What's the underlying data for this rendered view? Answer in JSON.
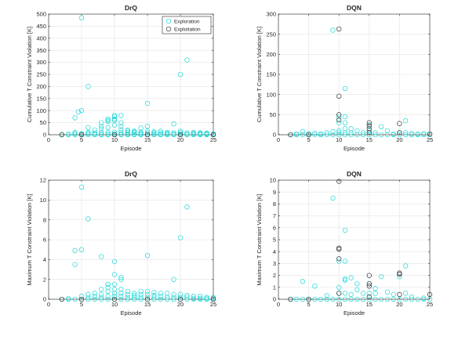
{
  "legend": {
    "entries": [
      {
        "label": "Exploration",
        "color": "#1fd6d6"
      },
      {
        "label": "Exploitation",
        "color": "#333333"
      }
    ]
  },
  "colors": {
    "exploration": "#1fd6d6",
    "exploitation": "#333333",
    "grid": "#e3e3e3",
    "axis": "#262626"
  },
  "chart_data": [
    {
      "type": "scatter",
      "title": "DrQ",
      "xlabel": "Episode",
      "ylabel": "Cumulative T Constraint Violation [K]",
      "xlim": [
        0,
        25
      ],
      "ylim": [
        0,
        500
      ],
      "xticks": [
        0,
        5,
        10,
        15,
        20,
        25
      ],
      "yticks": [
        0,
        50,
        100,
        150,
        200,
        250,
        300,
        350,
        400,
        450,
        500
      ],
      "grid": true,
      "legend": "top-right",
      "series": [
        {
          "name": "Exploration",
          "marker": "circle",
          "color": "#1fd6d6",
          "x": [
            2,
            2,
            3,
            3,
            4,
            4,
            4,
            4,
            4.5,
            5,
            5,
            5,
            5,
            5,
            6,
            6,
            6,
            6,
            6,
            7,
            7,
            7,
            7,
            8,
            8,
            8,
            8,
            8,
            8,
            9,
            9,
            9,
            9,
            9,
            9,
            9,
            10,
            10,
            10,
            10,
            10,
            10,
            10,
            10,
            11,
            11,
            11,
            11,
            11,
            11,
            11,
            12,
            12,
            12,
            12,
            12,
            13,
            13,
            13,
            13,
            13,
            14,
            14,
            14,
            14,
            14,
            15,
            15,
            15,
            15,
            15,
            15,
            16,
            16,
            16,
            16,
            17,
            17,
            17,
            17,
            18,
            18,
            18,
            18,
            19,
            19,
            19,
            19,
            20,
            20,
            20,
            20,
            20,
            21,
            21,
            21,
            21,
            22,
            22,
            22,
            22,
            23,
            23,
            23,
            23,
            24,
            24,
            24,
            24,
            25,
            25,
            25
          ],
          "y": [
            0,
            1,
            0,
            2,
            0,
            5,
            10,
            70,
            95,
            0,
            2,
            5,
            100,
            485,
            0,
            5,
            10,
            30,
            200,
            0,
            3,
            8,
            20,
            0,
            2,
            10,
            25,
            35,
            50,
            0,
            2,
            10,
            30,
            55,
            60,
            65,
            0,
            3,
            10,
            40,
            60,
            65,
            75,
            80,
            0,
            2,
            10,
            20,
            35,
            50,
            80,
            0,
            3,
            10,
            15,
            20,
            0,
            2,
            8,
            12,
            15,
            0,
            3,
            8,
            10,
            28,
            0,
            2,
            8,
            15,
            35,
            130,
            0,
            3,
            8,
            12,
            0,
            2,
            8,
            15,
            0,
            2,
            6,
            10,
            0,
            3,
            8,
            45,
            0,
            3,
            10,
            15,
            250,
            0,
            3,
            8,
            310,
            0,
            2,
            6,
            10,
            0,
            2,
            5,
            8,
            0,
            2,
            5,
            7,
            0,
            2,
            4
          ]
        },
        {
          "name": "Exploitation",
          "marker": "circle",
          "color": "#333333",
          "x": [
            2,
            5,
            10,
            15,
            20,
            25
          ],
          "y": [
            0,
            0,
            0,
            0,
            0,
            0
          ]
        }
      ]
    },
    {
      "type": "scatter",
      "title": "DQN",
      "xlabel": "Episode",
      "ylabel": "Cumulative T Constraint Violation [K]",
      "xlim": [
        0,
        25
      ],
      "ylim": [
        0,
        300
      ],
      "xticks": [
        0,
        5,
        10,
        15,
        20,
        25
      ],
      "yticks": [
        0,
        50,
        100,
        150,
        200,
        250,
        300
      ],
      "grid": true,
      "series": [
        {
          "name": "Exploration",
          "marker": "circle",
          "color": "#1fd6d6",
          "x": [
            2,
            3,
            3,
            4,
            4,
            5,
            5,
            6,
            6,
            7,
            7,
            8,
            8,
            9,
            9,
            9,
            10,
            10,
            10,
            10,
            10,
            11,
            11,
            11,
            11,
            11,
            11,
            12,
            12,
            12,
            13,
            13,
            14,
            14,
            15,
            15,
            15,
            15,
            16,
            16,
            17,
            17,
            18,
            18,
            19,
            19,
            20,
            20,
            21,
            21,
            21,
            22,
            22,
            23,
            23,
            24,
            24,
            25
          ],
          "y": [
            0,
            0,
            2,
            0,
            8,
            0,
            3,
            0,
            4,
            0,
            2,
            0,
            5,
            0,
            8,
            260,
            0,
            5,
            10,
            30,
            45,
            0,
            5,
            15,
            30,
            45,
            115,
            0,
            5,
            15,
            0,
            10,
            0,
            5,
            0,
            5,
            10,
            25,
            0,
            5,
            0,
            20,
            0,
            10,
            0,
            2,
            0,
            5,
            0,
            5,
            35,
            0,
            3,
            0,
            2,
            0,
            3,
            0
          ]
        },
        {
          "name": "Exploitation",
          "marker": "circle",
          "color": "#333333",
          "x": [
            2,
            5,
            10,
            10,
            10,
            10,
            15,
            15,
            15,
            15,
            20,
            20,
            25
          ],
          "y": [
            0,
            0,
            263,
            96,
            50,
            37,
            30,
            22,
            15,
            5,
            28,
            5,
            2
          ]
        }
      ]
    },
    {
      "type": "scatter",
      "title": "DrQ",
      "xlabel": "Episode",
      "ylabel": "Maximum T Constraint Violation [K]",
      "xlim": [
        0,
        25
      ],
      "ylim": [
        0,
        12
      ],
      "xticks": [
        0,
        5,
        10,
        15,
        20,
        25
      ],
      "yticks": [
        0,
        2,
        4,
        6,
        8,
        10,
        12
      ],
      "grid": true,
      "series": [
        {
          "name": "Exploration",
          "marker": "circle",
          "color": "#1fd6d6",
          "x": [
            2,
            3,
            3,
            4,
            4,
            4,
            5,
            5,
            5,
            5,
            6,
            6,
            6,
            6,
            7,
            7,
            7,
            8,
            8,
            8,
            8,
            8,
            9,
            9,
            9,
            9,
            9,
            9,
            10,
            10,
            10,
            10,
            10,
            10,
            10,
            11,
            11,
            11,
            11,
            11,
            11,
            12,
            12,
            12,
            12,
            13,
            13,
            13,
            13,
            14,
            14,
            14,
            14,
            15,
            15,
            15,
            15,
            15,
            16,
            16,
            16,
            16,
            17,
            17,
            17,
            18,
            18,
            18,
            19,
            19,
            19,
            19,
            20,
            20,
            20,
            20,
            21,
            21,
            21,
            21,
            22,
            22,
            22,
            23,
            23,
            23,
            24,
            24,
            24,
            25,
            25,
            25
          ],
          "y": [
            0,
            0,
            0.05,
            0,
            3.5,
            4.9,
            0,
            0.3,
            5,
            11.3,
            0,
            0.2,
            0.5,
            8.1,
            0,
            0.3,
            0.6,
            0,
            0.2,
            0.5,
            1,
            4.3,
            0,
            0.3,
            0.8,
            1.2,
            1.5,
            1.5,
            0,
            0.3,
            0.6,
            1,
            1.5,
            2.5,
            3.8,
            0,
            0.3,
            0.6,
            1,
            2,
            2.2,
            0,
            0.2,
            0.5,
            0.8,
            0,
            0.2,
            0.4,
            0.6,
            0,
            0.2,
            0.5,
            0.8,
            0,
            0.2,
            0.5,
            0.8,
            4.4,
            0,
            0.2,
            0.4,
            0.7,
            0,
            0.3,
            0.6,
            0,
            0.2,
            0.6,
            0,
            0.2,
            0.5,
            2,
            0,
            0.2,
            0.5,
            6.2,
            0,
            0.2,
            0.4,
            9.3,
            0,
            0.1,
            0.3,
            0,
            0.1,
            0.3,
            0,
            0.1,
            0.2,
            0,
            0.1,
            0.2
          ]
        },
        {
          "name": "Exploitation",
          "marker": "circle",
          "color": "#333333",
          "x": [
            2,
            5,
            10,
            15,
            20,
            25
          ],
          "y": [
            0,
            0,
            0,
            0,
            0,
            0
          ]
        }
      ]
    },
    {
      "type": "scatter",
      "title": "DQN",
      "xlabel": "Episode",
      "ylabel": "Maximum T Constraint Violation [K]",
      "xlim": [
        0,
        25
      ],
      "ylim": [
        0,
        10
      ],
      "xticks": [
        0,
        5,
        10,
        15,
        20,
        25
      ],
      "yticks": [
        0,
        1,
        2,
        3,
        4,
        5,
        6,
        7,
        8,
        9,
        10
      ],
      "grid": true,
      "series": [
        {
          "name": "Exploration",
          "marker": "circle",
          "color": "#1fd6d6",
          "x": [
            2,
            3,
            4,
            4,
            5,
            6,
            6,
            7,
            8,
            8,
            9,
            9,
            10,
            10,
            10,
            10,
            11,
            11,
            11,
            11,
            11,
            11,
            12,
            12,
            12,
            13,
            13,
            13,
            14,
            14,
            15,
            15,
            15,
            16,
            16,
            16,
            17,
            17,
            18,
            18,
            19,
            19,
            20,
            20,
            21,
            21,
            21,
            22,
            22,
            23,
            24,
            24,
            25
          ],
          "y": [
            0,
            0,
            0,
            1.5,
            0,
            0,
            1.1,
            0,
            0,
            0.3,
            0,
            8.5,
            0,
            0.5,
            1,
            3.2,
            0,
            0.5,
            1.6,
            1.7,
            3.2,
            5.8,
            0,
            0.4,
            1.8,
            0,
            0.8,
            1.3,
            0,
            0.5,
            0,
            0.5,
            1.3,
            0,
            0.5,
            0.9,
            0,
            1.9,
            0,
            0.6,
            0,
            0.4,
            0,
            1.9,
            0,
            0.5,
            2.8,
            0,
            0.2,
            0,
            0,
            0.1,
            0
          ]
        },
        {
          "name": "Exploitation",
          "marker": "circle",
          "color": "#333333",
          "x": [
            2,
            5,
            10,
            10,
            10,
            10,
            10,
            15,
            15,
            15,
            15,
            20,
            20,
            20,
            25
          ],
          "y": [
            0,
            0,
            9.9,
            4.3,
            4.2,
            3.4,
            0.5,
            2,
            1.3,
            1.1,
            0.2,
            2.2,
            2.1,
            0.4,
            0.4
          ]
        }
      ]
    }
  ]
}
